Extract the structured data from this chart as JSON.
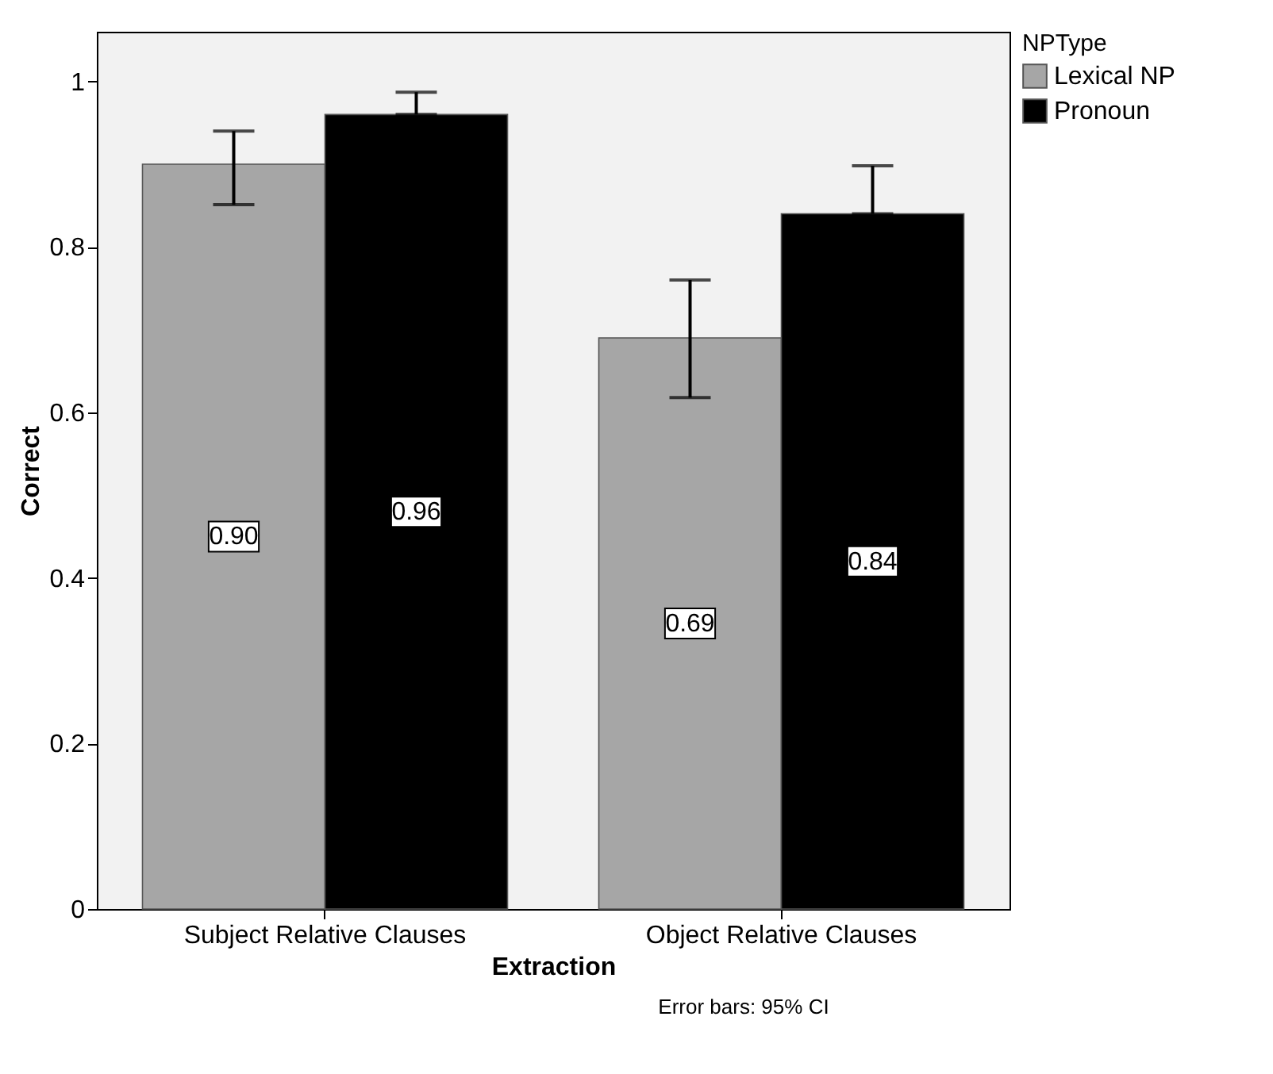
{
  "chart_data": {
    "type": "bar",
    "xlabel": "Extraction",
    "ylabel": "Correct",
    "legend_title": "NPType",
    "categories": [
      "Subject Relative Clauses",
      "Object Relative Clauses"
    ],
    "series": [
      {
        "name": "Lexical NP",
        "color": "#a6a6a6",
        "values": [
          0.9,
          0.69
        ],
        "errors": [
          [
            0.851,
            0.94
          ],
          [
            0.618,
            0.76
          ]
        ],
        "value_labels": [
          "0.90",
          "0.69"
        ]
      },
      {
        "name": "Pronoun",
        "color": "#000000",
        "values": [
          0.96,
          0.84
        ],
        "errors": [
          [
            0.96,
            0.987
          ],
          [
            0.84,
            0.898
          ]
        ],
        "value_labels": [
          "0.96",
          "0.84"
        ]
      }
    ],
    "ylim": [
      0,
      1.06
    ],
    "yticks": [
      0,
      0.2,
      0.4,
      0.6,
      0.8,
      1
    ],
    "grid": false,
    "legend": "top right",
    "annotations": [
      "Error bars: 95% CI"
    ]
  }
}
